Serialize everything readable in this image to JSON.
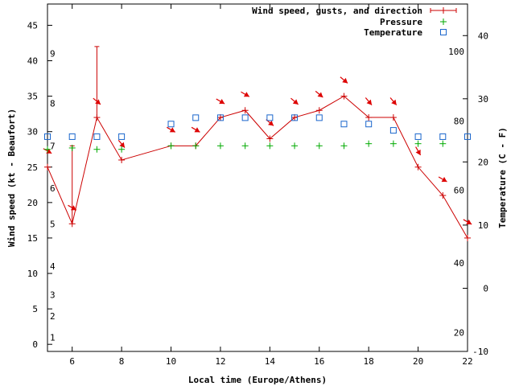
{
  "chart_data": {
    "type": "line",
    "xlabel": "Local time (Europe/Athens)",
    "ylabel": "Wind speed (kt - Beaufort)",
    "y2label": "Temperature (C - F)",
    "xlim": [
      5,
      22
    ],
    "ylim": [
      -1,
      48
    ],
    "y2lim": [
      -10,
      45
    ],
    "x_ticks": [
      6,
      8,
      10,
      12,
      14,
      16,
      18,
      20,
      22
    ],
    "y_ticks": [
      0,
      5,
      10,
      15,
      20,
      25,
      30,
      35,
      40,
      45
    ],
    "y2_ticks": [
      -10,
      0,
      10,
      20,
      30,
      40
    ],
    "beaufort_labels": [
      {
        "label": "1",
        "y": 1
      },
      {
        "label": "2",
        "y": 4
      },
      {
        "label": "3",
        "y": 7
      },
      {
        "label": "4",
        "y": 11
      },
      {
        "label": "5",
        "y": 17
      },
      {
        "label": "6",
        "y": 22
      },
      {
        "label": "7",
        "y": 28
      },
      {
        "label": "8",
        "y": 34
      },
      {
        "label": "9",
        "y": 41
      }
    ],
    "fahrenheit_labels": [
      {
        "label": "20",
        "y2": -7
      },
      {
        "label": "40",
        "y2": 4
      },
      {
        "label": "60",
        "y2": 15.5
      },
      {
        "label": "80",
        "y2": 26.5
      },
      {
        "label": "100",
        "y2": 37.5
      }
    ],
    "legend_position": "top-right",
    "series": [
      {
        "name": "Wind speed, gusts, and direction",
        "color": "#cc0000",
        "x": [
          5,
          6,
          7,
          8,
          10,
          11,
          12,
          13,
          14,
          15,
          16,
          17,
          18,
          19,
          20,
          21,
          22
        ],
        "values": [
          25,
          17,
          32,
          26,
          28,
          28,
          32,
          33,
          29,
          32,
          33,
          35,
          32,
          32,
          25,
          21,
          15
        ],
        "gusts": [
          null,
          28,
          42,
          null,
          null,
          null,
          null,
          null,
          null,
          null,
          null,
          null,
          null,
          null,
          null,
          null,
          null
        ],
        "direction_deg": [
          300,
          300,
          310,
          320,
          300,
          300,
          300,
          300,
          310,
          310,
          310,
          310,
          320,
          320,
          330,
          300,
          300
        ]
      },
      {
        "name": "Pressure",
        "color": "#00aa00",
        "x": [
          5,
          6,
          7,
          8,
          10,
          11,
          12,
          13,
          14,
          15,
          16,
          17,
          18,
          19,
          20,
          21
        ],
        "values": [
          27.5,
          27.7,
          27.5,
          27.5,
          28,
          28,
          28,
          28,
          28,
          28,
          28,
          28,
          28.3,
          28.3,
          28.3,
          28.3
        ]
      },
      {
        "name": "Temperature",
        "color": "#1a66cc",
        "axis": "y2",
        "x": [
          5,
          6,
          7,
          8,
          10,
          11,
          12,
          13,
          14,
          15,
          16,
          17,
          18,
          19,
          20,
          21,
          22
        ],
        "values": [
          24,
          24,
          24,
          24,
          26,
          27,
          27,
          27,
          27,
          27,
          27,
          26,
          26,
          25,
          24,
          24,
          24
        ]
      }
    ]
  }
}
